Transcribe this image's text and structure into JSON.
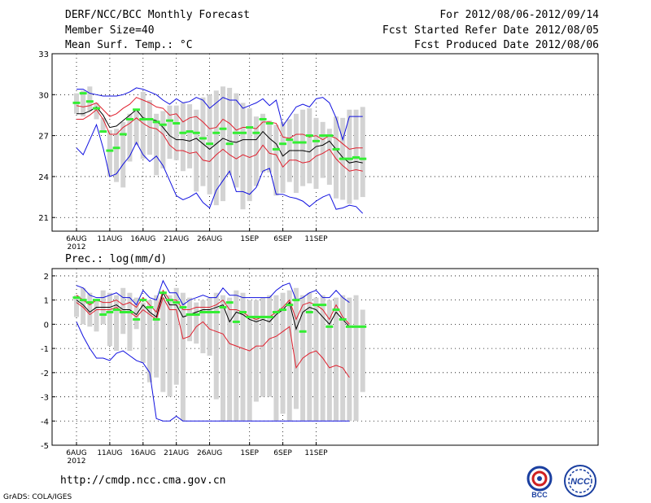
{
  "header": {
    "title": "DERF/NCC/BCC Monthly Forecast",
    "member_size": "Member Size=40",
    "variable": "Mean Surf. Temp.: °C",
    "period": "For 2012/08/06-2012/09/14",
    "refer_date": "Fcst Started Refer Date 2012/08/05",
    "produced_date": "Fcst Produced Date 2012/08/06"
  },
  "footer": {
    "url": "http://cmdp.ncc.cma.gov.cn",
    "grads": "GrADS: COLA/IGES"
  },
  "logos": {
    "bcc": "BCC",
    "ncc": "NCC"
  },
  "colors": {
    "box": "#d3d3d3",
    "mean": "#000000",
    "sd": "#e0202e",
    "extreme": "#1010e0",
    "median": "#33ee33"
  },
  "chart_data": [
    {
      "type": "line",
      "title": "Mean Surf. Temp.: °C",
      "ylim": [
        20,
        33
      ],
      "yticks": [
        "21",
        "24",
        "27",
        "30",
        "33"
      ],
      "ytick_values": [
        21,
        24,
        27,
        30,
        33
      ],
      "xtick_labels": [
        "6AUG",
        "11AUG",
        "16AUG",
        "21AUG",
        "26AUG",
        "1SEP",
        "6SEP",
        "11SEP"
      ],
      "xtick_days": [
        0,
        5,
        10,
        15,
        20,
        26,
        31,
        36
      ],
      "xtick_year": "2012",
      "days": 39,
      "series": [
        {
          "name": "max",
          "color": "#1010e0",
          "values": [
            30.4,
            30.4,
            30.1,
            30.0,
            29.9,
            29.9,
            29.9,
            30.0,
            30.2,
            30.5,
            30.4,
            30.2,
            30.0,
            29.6,
            29.3,
            29.7,
            29.4,
            29.5,
            29.8,
            29.6,
            29.0,
            29.4,
            29.8,
            29.6,
            29.6,
            29.0,
            29.2,
            29.4,
            29.7,
            29.2,
            29.6,
            27.7,
            28.4,
            29.1,
            29.3,
            29.1,
            29.7,
            29.8,
            29.4,
            28.3,
            26.7,
            28.4,
            28.4,
            28.4
          ]
        },
        {
          "name": "mean+sd",
          "color": "#e0202e",
          "values": [
            29.2,
            29.1,
            29.2,
            29.4,
            28.9,
            28.4,
            28.6,
            29.0,
            29.3,
            29.8,
            29.6,
            29.4,
            29.1,
            29.0,
            28.5,
            28.6,
            28.0,
            28.3,
            28.4,
            28.0,
            27.5,
            27.6,
            28.2,
            27.9,
            27.4,
            27.6,
            27.6,
            27.5,
            28.0,
            28.0,
            27.9,
            26.9,
            26.8,
            27.1,
            27.1,
            26.9,
            27.0,
            26.7,
            27.0,
            26.8,
            26.4,
            26.0,
            26.1,
            26.1
          ]
        },
        {
          "name": "mean",
          "color": "#000000",
          "values": [
            28.6,
            28.6,
            28.8,
            29.1,
            28.5,
            27.6,
            27.7,
            28.1,
            28.5,
            28.9,
            28.3,
            28.2,
            28.1,
            27.6,
            27.0,
            26.7,
            26.7,
            26.6,
            26.8,
            26.4,
            26.0,
            26.4,
            26.8,
            26.6,
            26.5,
            26.7,
            26.7,
            26.7,
            27.3,
            26.8,
            26.4,
            25.5,
            25.9,
            25.9,
            25.9,
            25.8,
            26.2,
            26.3,
            26.6,
            26.0,
            25.4,
            25.0,
            25.1,
            25.0
          ]
        },
        {
          "name": "mean-sd",
          "color": "#e0202e",
          "values": [
            28.2,
            28.2,
            28.5,
            28.9,
            28.2,
            27.1,
            27.1,
            27.6,
            27.9,
            28.3,
            27.9,
            27.6,
            27.5,
            27.1,
            26.3,
            25.9,
            25.9,
            25.7,
            25.8,
            25.2,
            25.1,
            25.6,
            26.0,
            25.6,
            25.3,
            25.6,
            25.4,
            25.6,
            26.3,
            25.7,
            25.6,
            24.7,
            25.2,
            25.2,
            25.0,
            25.1,
            25.5,
            25.7,
            26.0,
            25.3,
            24.8,
            24.4,
            24.5,
            24.4
          ]
        },
        {
          "name": "min",
          "color": "#1010e0",
          "values": [
            26.1,
            25.6,
            26.7,
            27.8,
            26.1,
            24.0,
            24.2,
            24.9,
            25.5,
            26.5,
            25.6,
            25.1,
            25.5,
            24.8,
            23.7,
            22.6,
            22.3,
            22.5,
            22.8,
            22.1,
            21.7,
            23.0,
            23.7,
            24.4,
            22.9,
            22.9,
            22.7,
            23.2,
            24.4,
            24.6,
            22.7,
            22.7,
            22.5,
            22.4,
            22.2,
            21.8,
            22.2,
            22.5,
            22.7,
            21.6,
            21.7,
            21.9,
            21.8,
            21.3
          ]
        }
      ],
      "boxes": {
        "low": [
          28.6,
          28.4,
          28.8,
          28.2,
          27.3,
          24.0,
          23.6,
          23.2,
          25.1,
          26.3,
          25.3,
          25.6,
          24.1,
          24.6,
          25.3,
          25.2,
          24.4,
          24.6,
          22.9,
          23.3,
          22.7,
          21.9,
          22.2,
          24.1,
          23.2,
          21.6,
          22.2,
          23.3,
          24.3,
          24.3,
          22.6,
          22.8,
          23.6,
          22.8,
          23.3,
          23.5,
          23.1,
          23.9,
          23.4,
          22.4,
          22.3,
          22.0,
          22.3,
          22.5
        ],
        "high": [
          30.1,
          30.3,
          30.6,
          29.4,
          28.3,
          27.4,
          27.5,
          28.0,
          28.6,
          28.9,
          30.2,
          29.6,
          28.6,
          28.8,
          29.2,
          29.2,
          29.4,
          29.3,
          28.9,
          29.8,
          30.0,
          30.3,
          30.6,
          30.5,
          30.1,
          29.4,
          29.0,
          28.4,
          28.6,
          28.1,
          27.8,
          28.0,
          28.2,
          28.6,
          28.9,
          29.0,
          28.3,
          28.0,
          27.5,
          28.4,
          28.3,
          28.9,
          28.9,
          29.1
        ]
      },
      "medians": [
        29.4,
        30.1,
        29.5,
        29.0,
        27.3,
        25.9,
        26.1,
        27.1,
        28.2,
        28.9,
        28.2,
        28.2,
        28.0,
        27.8,
        28.1,
        27.9,
        27.2,
        27.3,
        27.2,
        26.8,
        26.4,
        27.2,
        27.5,
        26.4,
        27.2,
        27.2,
        27.6,
        27.2,
        28.2,
        27.9,
        26.0,
        26.4,
        26.7,
        26.5,
        26.5,
        27.0,
        26.6,
        27.0,
        27.0,
        26.0,
        25.3,
        25.3,
        25.4,
        25.3
      ]
    },
    {
      "type": "line",
      "title": "Prec.: log(mm/d)",
      "ylim": [
        -5,
        2.3
      ],
      "yticks": [
        "-5",
        "-4",
        "-3",
        "-2",
        "-1",
        "0",
        "1",
        "2"
      ],
      "ytick_values": [
        -5,
        -4,
        -3,
        -2,
        -1,
        0,
        1,
        2
      ],
      "xtick_labels": [
        "6AUG",
        "11AUG",
        "16AUG",
        "21AUG",
        "26AUG",
        "1SEP",
        "6SEP",
        "11SEP"
      ],
      "xtick_days": [
        0,
        5,
        10,
        15,
        20,
        26,
        31,
        36
      ],
      "xtick_year": "2012",
      "days": 39,
      "series": [
        {
          "name": "max",
          "color": "#1010e0",
          "values": [
            1.6,
            1.5,
            1.2,
            1.1,
            1.1,
            1.2,
            1.3,
            1.1,
            1.1,
            0.8,
            1.4,
            1.1,
            1.0,
            1.8,
            1.3,
            1.3,
            0.8,
            1.0,
            1.1,
            1.2,
            1.1,
            1.1,
            1.5,
            1.2,
            1.2,
            1.1,
            1.1,
            1.1,
            1.1,
            1.1,
            1.4,
            1.6,
            1.7,
            1.0,
            1.1,
            1.3,
            1.4,
            1.1,
            1.1,
            1.4,
            1.1,
            0.9
          ]
        },
        {
          "name": "mean+sd",
          "color": "#e0202e",
          "values": [
            1.2,
            1.0,
            0.8,
            1.0,
            0.9,
            0.9,
            1.0,
            0.8,
            0.9,
            0.7,
            1.1,
            0.8,
            0.5,
            1.4,
            1.0,
            1.0,
            0.6,
            0.6,
            0.7,
            0.7,
            0.7,
            0.8,
            1.0,
            0.6,
            0.6,
            0.5,
            0.3,
            0.2,
            0.3,
            0.3,
            0.5,
            0.7,
            1.0,
            0.2,
            0.8,
            0.9,
            0.8,
            0.6,
            0.2,
            0.8,
            0.3,
            0.0
          ]
        },
        {
          "name": "mean",
          "color": "#000000",
          "values": [
            1.0,
            0.8,
            0.5,
            0.7,
            0.7,
            0.7,
            0.8,
            0.6,
            0.6,
            0.4,
            0.8,
            0.5,
            0.3,
            1.3,
            0.8,
            0.8,
            0.3,
            0.4,
            0.5,
            0.6,
            0.6,
            0.7,
            0.8,
            0.1,
            0.5,
            0.4,
            0.2,
            0.1,
            0.2,
            0.1,
            0.4,
            0.6,
            0.9,
            -0.2,
            0.5,
            0.7,
            0.6,
            0.3,
            0.0,
            0.5,
            0.2,
            -0.1
          ]
        },
        {
          "name": "mean-sd",
          "color": "#e0202e",
          "values": [
            0.9,
            0.7,
            0.4,
            0.6,
            0.6,
            0.6,
            0.7,
            0.5,
            0.5,
            0.3,
            0.6,
            0.4,
            0.2,
            1.1,
            0.6,
            0.6,
            -0.6,
            -0.5,
            -0.1,
            0.1,
            -0.2,
            -0.3,
            -0.4,
            -0.8,
            -0.9,
            -1.0,
            -1.1,
            -0.9,
            -0.9,
            -0.6,
            -0.5,
            -0.3,
            -0.1,
            -1.8,
            -1.4,
            -1.2,
            -1.1,
            -1.4,
            -1.8,
            -1.7,
            -1.8,
            -2.2
          ]
        },
        {
          "name": "min",
          "color": "#1010e0",
          "values": [
            0.1,
            -0.5,
            -1.0,
            -1.4,
            -1.4,
            -1.5,
            -1.2,
            -1.1,
            -1.3,
            -1.5,
            -1.6,
            -2.0,
            -3.9,
            -4.0,
            -4.0,
            -3.8,
            -4.0,
            -4.0,
            -4.0,
            -4.0,
            -4.0,
            -4.0,
            -4.0,
            -4.0,
            -4.0,
            -4.0,
            -4.0,
            -4.0,
            -4.0,
            -4.0,
            -4.0,
            -4.0,
            -4.0,
            -4.0,
            -4.0,
            -4.0,
            -4.0,
            -4.0,
            -4.0,
            -4.0,
            -4.0,
            -4.0
          ]
        }
      ],
      "boxes": {
        "low": [
          0.3,
          0.0,
          -0.1,
          -0.3,
          0.0,
          -0.9,
          -1.1,
          -0.4,
          -1.1,
          -0.2,
          -1.6,
          -2.4,
          -2.2,
          -2.8,
          -3.0,
          -2.5,
          -4.0,
          -0.7,
          -0.8,
          -1.2,
          -1.3,
          -3.1,
          -4.0,
          -4.0,
          -4.0,
          -4.0,
          -4.0,
          -3.2,
          -3.0,
          -3.0,
          -4.0,
          -3.7,
          -4.0,
          -3.5,
          -4.0,
          -4.0,
          -4.0,
          -4.0,
          -4.0,
          -4.0,
          -4.0,
          -4.0,
          -4.0,
          -2.8
        ],
        "high": [
          1.2,
          1.5,
          1.3,
          1.0,
          1.4,
          1.3,
          1.2,
          1.5,
          1.3,
          1.1,
          0.9,
          1.0,
          1.2,
          1.1,
          1.2,
          1.5,
          1.3,
          1.1,
          0.9,
          1.0,
          1.1,
          1.3,
          1.2,
          1.1,
          1.4,
          1.3,
          1.0,
          1.0,
          1.1,
          1.2,
          1.2,
          1.3,
          1.4,
          1.5,
          1.2,
          1.3,
          1.1,
          1.2,
          1.0,
          1.1,
          1.2,
          1.1,
          1.2,
          0.6
        ]
      },
      "medians": [
        1.1,
        1.0,
        0.9,
        1.0,
        0.4,
        0.5,
        0.6,
        0.5,
        0.5,
        0.2,
        1.0,
        0.7,
        0.2,
        1.3,
        1.0,
        0.9,
        0.7,
        0.4,
        0.4,
        0.5,
        0.5,
        0.5,
        0.7,
        0.9,
        0.1,
        0.5,
        0.3,
        0.3,
        0.3,
        0.3,
        0.5,
        0.6,
        0.8,
        1.0,
        -0.3,
        0.5,
        0.8,
        0.8,
        -0.1,
        0.6,
        0.2,
        -0.1,
        -0.1,
        -0.1
      ]
    }
  ]
}
